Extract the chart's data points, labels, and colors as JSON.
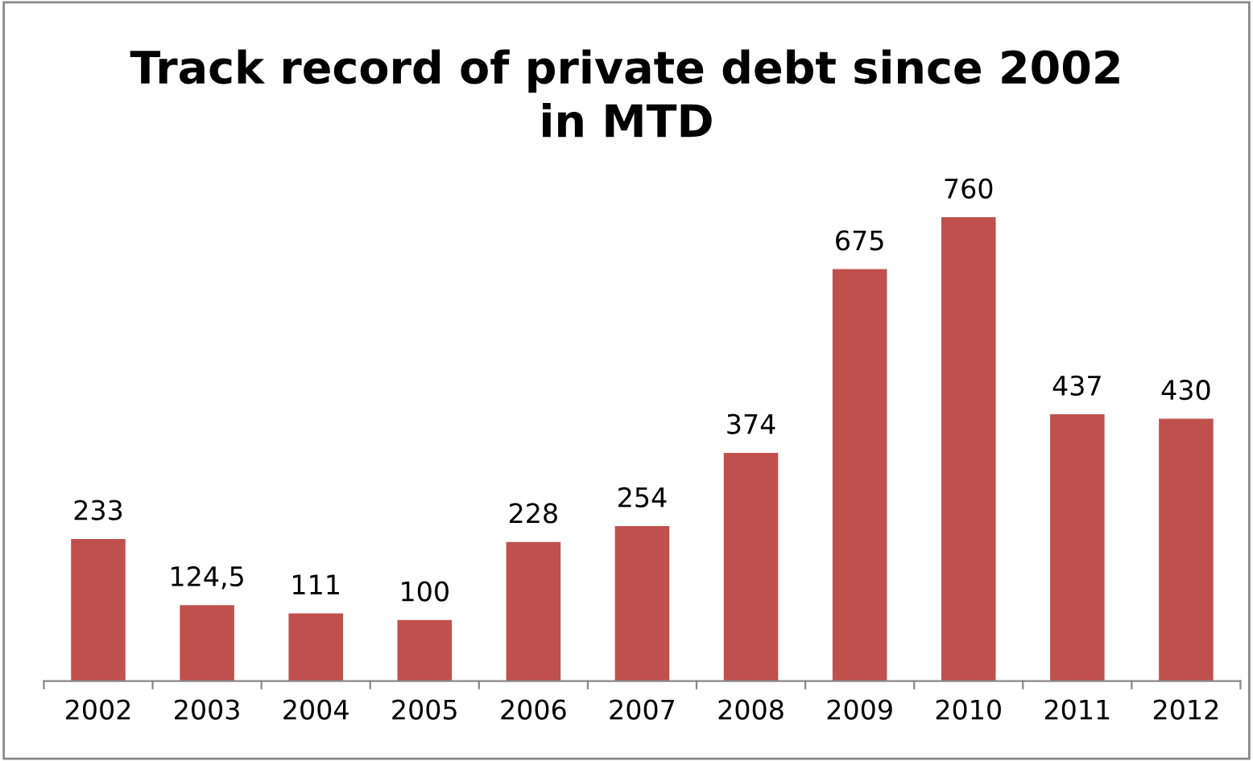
{
  "chart_data": {
    "type": "bar",
    "title": "Track record of private debt since 2002\nin MTD",
    "categories": [
      "2002",
      "2003",
      "2004",
      "2005",
      "2006",
      "2007",
      "2008",
      "2009",
      "2010",
      "2011",
      "2012"
    ],
    "values": [
      233,
      124.5,
      111,
      100,
      228,
      254,
      374,
      675,
      760,
      437,
      430
    ],
    "value_labels": [
      "233",
      "124,5",
      "111",
      "100",
      "228",
      "254",
      "374",
      "675",
      "760",
      "437",
      "430"
    ],
    "color": "#c0504d",
    "tick_labels": "x",
    "grid": false,
    "legend": false
  }
}
